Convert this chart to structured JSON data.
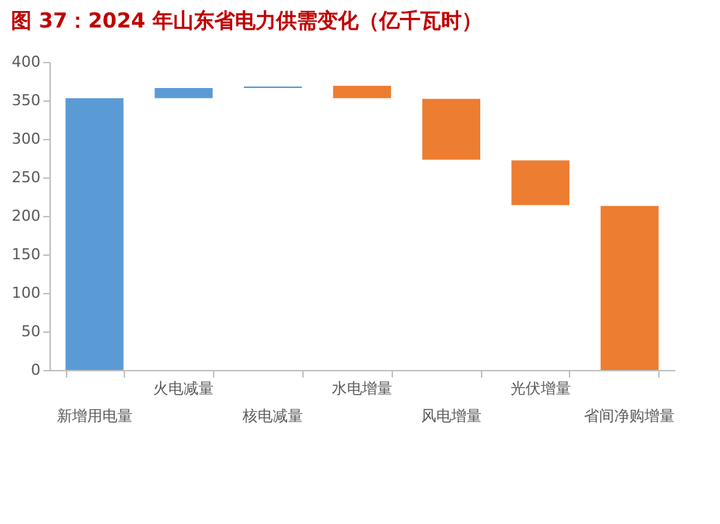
{
  "chart_data": {
    "type": "bar",
    "title": "图 37：2024 年山东省电力供需变化（亿千瓦时）",
    "categories": [
      "新增用电量",
      "火电减量",
      "核电减量",
      "水电增量",
      "风电增量",
      "光伏增量",
      "省间净购增量"
    ],
    "values": [
      353,
      13,
      2,
      16,
      79,
      58,
      213
    ],
    "base": [
      0,
      353,
      366,
      353,
      273,
      214,
      0
    ],
    "colors": [
      "#5b9bd5",
      "#5b9bd5",
      "#5b9bd5",
      "#ed7d31",
      "#ed7d31",
      "#ed7d31",
      "#ed7d31"
    ],
    "ylim": [
      0,
      400
    ],
    "yticks": [
      0,
      50,
      100,
      150,
      200,
      250,
      300,
      350,
      400
    ],
    "grid": false
  }
}
